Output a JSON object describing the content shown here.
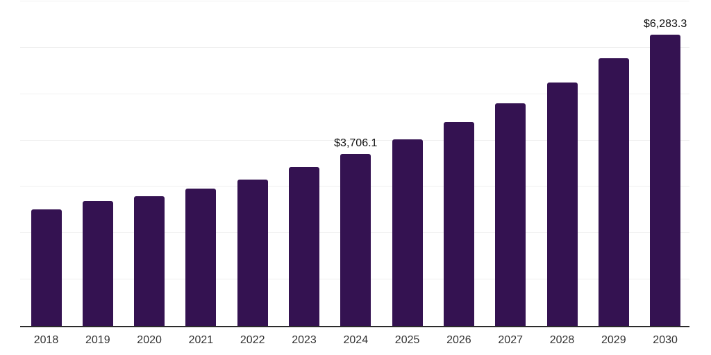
{
  "chart_data": {
    "type": "bar",
    "title": "",
    "xlabel": "",
    "ylabel": "",
    "categories": [
      "2018",
      "2019",
      "2020",
      "2021",
      "2022",
      "2023",
      "2024",
      "2025",
      "2026",
      "2027",
      "2028",
      "2029",
      "2030"
    ],
    "values": [
      2510,
      2690,
      2800,
      2960,
      3160,
      3430,
      3706.1,
      4020,
      4400,
      4800,
      5250,
      5780,
      6283.3
    ],
    "data_labels": [
      {
        "category": "2024",
        "text": "$3,706.1"
      },
      {
        "category": "2030",
        "text": "$6,283.3"
      }
    ],
    "ylim": [
      0,
      7000
    ],
    "grid_step": 1000,
    "grid": true,
    "legend": false,
    "bar_color": "#341251",
    "gridline_color": "#f0f0f0",
    "axis_line_color": "#2b2b2b",
    "label_color": "#111111",
    "tick_label_color": "#333333"
  }
}
